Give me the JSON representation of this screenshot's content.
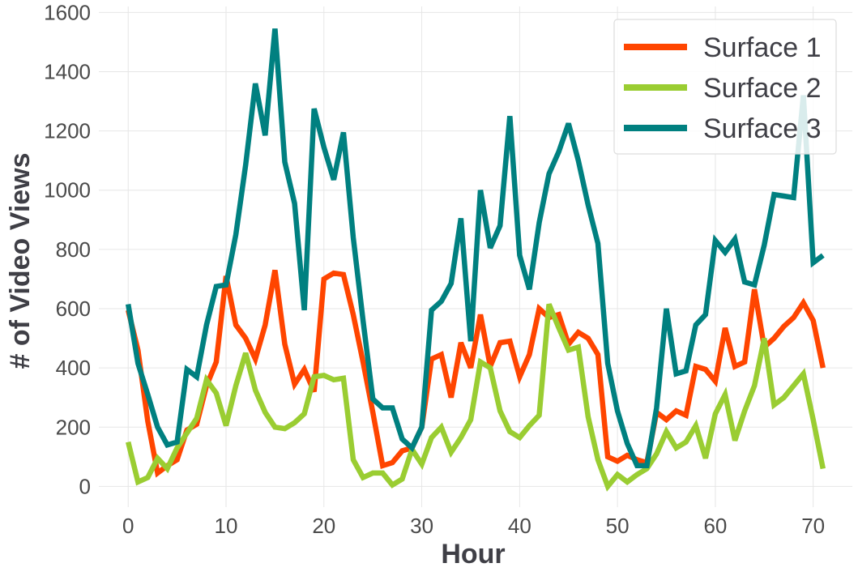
{
  "chart_data": {
    "type": "line",
    "title": "",
    "xlabel": "Hour",
    "ylabel": "# of Video Views",
    "xlim": [
      -3,
      74
    ],
    "ylim": [
      -70,
      1620
    ],
    "xticks": [
      0,
      10,
      20,
      30,
      40,
      50,
      60,
      70
    ],
    "yticks": [
      0,
      200,
      400,
      600,
      800,
      1000,
      1200,
      1400,
      1600
    ],
    "grid": true,
    "legend_position": "top-right",
    "x": [
      0,
      1,
      2,
      3,
      4,
      5,
      6,
      7,
      8,
      9,
      10,
      11,
      12,
      13,
      14,
      15,
      16,
      17,
      18,
      19,
      20,
      21,
      22,
      23,
      24,
      25,
      26,
      27,
      28,
      29,
      30,
      31,
      32,
      33,
      34,
      35,
      36,
      37,
      38,
      39,
      40,
      41,
      42,
      43,
      44,
      45,
      46,
      47,
      48,
      49,
      50,
      51,
      52,
      53,
      54,
      55,
      56,
      57,
      58,
      59,
      60,
      61,
      62,
      63,
      64,
      65,
      66,
      67,
      68,
      69,
      70,
      71
    ],
    "series": [
      {
        "name": "Surface 1",
        "color": "#ff4500",
        "values": [
          595,
          460,
          220,
          45,
          70,
          90,
          190,
          210,
          340,
          420,
          710,
          545,
          500,
          430,
          545,
          730,
          480,
          345,
          395,
          320,
          700,
          720,
          715,
          580,
          420,
          250,
          70,
          80,
          120,
          130,
          200,
          430,
          445,
          300,
          485,
          400,
          580,
          405,
          485,
          490,
          370,
          445,
          600,
          570,
          580,
          480,
          520,
          500,
          445,
          100,
          85,
          105,
          90,
          80,
          250,
          225,
          255,
          240,
          405,
          395,
          355,
          535,
          405,
          420,
          665,
          470,
          500,
          540,
          570,
          620,
          560,
          400
        ]
      },
      {
        "name": "Surface 2",
        "color": "#9acd32",
        "values": [
          150,
          15,
          30,
          95,
          60,
          130,
          180,
          230,
          360,
          315,
          205,
          340,
          450,
          325,
          250,
          200,
          195,
          215,
          245,
          370,
          375,
          360,
          365,
          90,
          30,
          45,
          45,
          5,
          25,
          125,
          75,
          165,
          200,
          115,
          165,
          225,
          420,
          400,
          255,
          185,
          165,
          205,
          240,
          615,
          535,
          460,
          470,
          235,
          90,
          0,
          40,
          15,
          40,
          60,
          110,
          185,
          130,
          150,
          205,
          95,
          245,
          310,
          155,
          255,
          340,
          500,
          275,
          300,
          340,
          380,
          225,
          60
        ]
      },
      {
        "name": "Surface 3",
        "color": "#008080",
        "values": [
          615,
          415,
          310,
          200,
          140,
          150,
          395,
          370,
          545,
          675,
          680,
          850,
          1085,
          1360,
          1185,
          1545,
          1095,
          955,
          595,
          1275,
          1145,
          1035,
          1195,
          840,
          560,
          295,
          265,
          265,
          160,
          130,
          200,
          595,
          625,
          685,
          905,
          490,
          1000,
          805,
          880,
          1250,
          780,
          665,
          890,
          1055,
          1130,
          1225,
          1100,
          950,
          820,
          415,
          255,
          145,
          70,
          70,
          265,
          600,
          380,
          390,
          545,
          580,
          830,
          790,
          835,
          690,
          680,
          815,
          985,
          980,
          975,
          1320,
          755,
          780
        ]
      }
    ]
  }
}
